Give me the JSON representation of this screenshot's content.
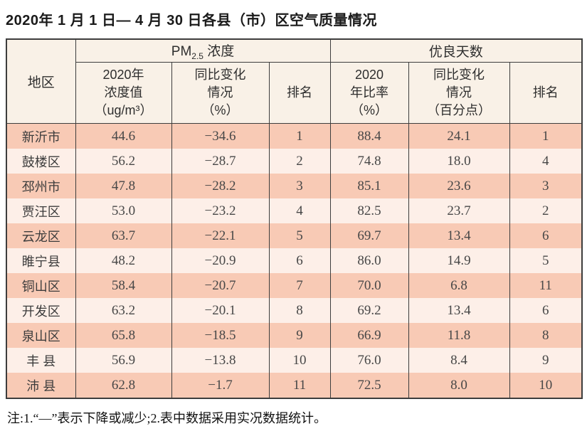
{
  "title": "2020年 1 月 1 日— 4 月 30 日各县（市）区空气质量情况",
  "table": {
    "header": {
      "region": "地区",
      "pm_group": {
        "prefix": "PM",
        "sub": "2.5",
        "suffix": " 浓度"
      },
      "good_days_group": "优良天数",
      "sub": {
        "pm_value": "2020年\n浓度值\n（ug/m³）",
        "pm_change": "同比变化\n情况\n（%）",
        "pm_rank": "排名",
        "gd_ratio": "2020\n年比率\n（%）",
        "gd_change": "同比变化\n情况\n（百分点）",
        "gd_rank": "排名"
      }
    },
    "row_keys": [
      "region",
      "pm_value",
      "pm_change",
      "pm_rank",
      "gd_ratio",
      "gd_change",
      "gd_rank"
    ],
    "rows": [
      {
        "region": "新沂市",
        "pm_value": "44.6",
        "pm_change": "−34.6",
        "pm_rank": "1",
        "gd_ratio": "88.4",
        "gd_change": "24.1",
        "gd_rank": "1"
      },
      {
        "region": "鼓楼区",
        "pm_value": "56.2",
        "pm_change": "−28.7",
        "pm_rank": "2",
        "gd_ratio": "74.8",
        "gd_change": "18.0",
        "gd_rank": "4"
      },
      {
        "region": "邳州市",
        "pm_value": "47.8",
        "pm_change": "−28.2",
        "pm_rank": "3",
        "gd_ratio": "85.1",
        "gd_change": "23.6",
        "gd_rank": "3"
      },
      {
        "region": "贾汪区",
        "pm_value": "53.0",
        "pm_change": "−23.2",
        "pm_rank": "4",
        "gd_ratio": "82.5",
        "gd_change": "23.7",
        "gd_rank": "2"
      },
      {
        "region": "云龙区",
        "pm_value": "63.7",
        "pm_change": "−22.1",
        "pm_rank": "5",
        "gd_ratio": "69.7",
        "gd_change": "13.4",
        "gd_rank": "6"
      },
      {
        "region": "睢宁县",
        "pm_value": "48.2",
        "pm_change": "−20.9",
        "pm_rank": "6",
        "gd_ratio": "86.0",
        "gd_change": "14.9",
        "gd_rank": "5"
      },
      {
        "region": "铜山区",
        "pm_value": "58.4",
        "pm_change": "−20.7",
        "pm_rank": "7",
        "gd_ratio": "70.0",
        "gd_change": "6.8",
        "gd_rank": "11"
      },
      {
        "region": "开发区",
        "pm_value": "63.2",
        "pm_change": "−20.1",
        "pm_rank": "8",
        "gd_ratio": "69.2",
        "gd_change": "13.4",
        "gd_rank": "6"
      },
      {
        "region": "泉山区",
        "pm_value": "65.8",
        "pm_change": "−18.5",
        "pm_rank": "9",
        "gd_ratio": "66.9",
        "gd_change": "11.8",
        "gd_rank": "8"
      },
      {
        "region": "丰 县",
        "pm_value": "56.9",
        "pm_change": "−13.8",
        "pm_rank": "10",
        "gd_ratio": "76.0",
        "gd_change": "8.4",
        "gd_rank": "9"
      },
      {
        "region": "沛 县",
        "pm_value": "62.8",
        "pm_change": "−1.7",
        "pm_rank": "11",
        "gd_ratio": "72.5",
        "gd_change": "8.0",
        "gd_rank": "10"
      }
    ]
  },
  "footnote": "注:1.“—”表示下降或减少;2.表中数据采用实况数据统计。",
  "colors": {
    "stripe_dark": "#f8cab5",
    "stripe_light": "#fdefe8",
    "header_bg": "#f9f1e7",
    "border": "#3d3d3d",
    "text": "#474747"
  }
}
